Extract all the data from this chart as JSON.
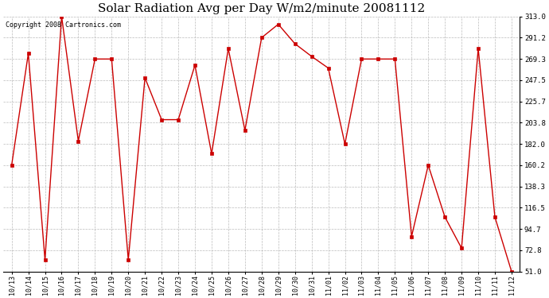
{
  "title": "Solar Radiation Avg per Day W/m2/minute 20081112",
  "copyright": "Copyright 2008 Cartronics.com",
  "dates": [
    "10/13",
    "10/14",
    "10/15",
    "10/16",
    "10/17",
    "10/18",
    "10/19",
    "10/20",
    "10/21",
    "10/22",
    "10/23",
    "10/24",
    "10/25",
    "10/26",
    "10/27",
    "10/28",
    "10/29",
    "10/30",
    "10/31",
    "11/01",
    "11/02",
    "11/03",
    "11/04",
    "11/05",
    "11/06",
    "11/07",
    "11/08",
    "11/09",
    "11/10",
    "11/11",
    "11/12"
  ],
  "values": [
    160.2,
    275.0,
    63.0,
    313.0,
    185.0,
    269.3,
    269.3,
    63.0,
    250.0,
    207.0,
    207.0,
    263.0,
    172.0,
    280.0,
    196.0,
    291.2,
    305.0,
    285.0,
    272.0,
    260.0,
    182.0,
    269.3,
    269.3,
    269.3,
    87.0,
    160.2,
    107.0,
    75.0,
    280.0,
    107.0,
    51.0
  ],
  "line_color": "#cc0000",
  "marker": "s",
  "marker_size": 2.5,
  "bg_color": "#ffffff",
  "grid_color": "#bbbbbb",
  "yticks": [
    51.0,
    72.8,
    94.7,
    116.5,
    138.3,
    160.2,
    182.0,
    203.8,
    225.7,
    247.5,
    269.3,
    291.2,
    313.0
  ],
  "ylim": [
    51.0,
    313.0
  ],
  "title_fontsize": 11,
  "copyright_fontsize": 6,
  "tick_fontsize": 6,
  "ylabel_fontsize": 6.5
}
